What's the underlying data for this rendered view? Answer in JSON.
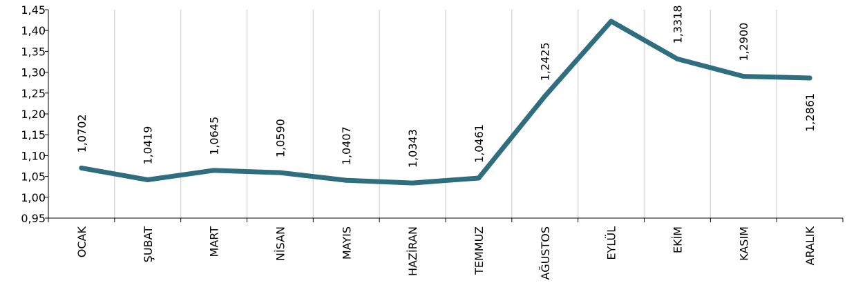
{
  "chart_data": {
    "type": "line",
    "categories": [
      "OCAK",
      "ŞUBAT",
      "MART",
      "NİSAN",
      "MAYIS",
      "HAZİRAN",
      "TEMMUZ",
      "AĞUSTOS",
      "EYLÜL",
      "EKİM",
      "KASIM",
      "ARALIK"
    ],
    "series": [
      {
        "values": [
          1.0702,
          1.0419,
          1.0645,
          1.059,
          1.0407,
          1.0343,
          1.0461,
          1.2425,
          1.4222,
          1.3318,
          1.29,
          1.2861
        ],
        "data_labels": [
          "1,0702",
          "1,0419",
          "1,0645",
          "1,0590",
          "1,0407",
          "1,0343",
          "1,0461",
          "1,2425",
          "",
          "1,3318",
          "1,2900",
          "1,2861"
        ]
      }
    ],
    "ylim": [
      0.95,
      1.45
    ],
    "yticks": [
      "0,95",
      "1,00",
      "1,05",
      "1,10",
      "1,15",
      "1,20",
      "1,25",
      "1,30",
      "1,35",
      "1,40",
      "1,45"
    ],
    "xlabel": "",
    "ylabel": "",
    "grid": "vertical",
    "legend": "none",
    "colors": {
      "line": "#2e6e7e",
      "grid": "#d9d9d9",
      "axis": "#000000"
    }
  }
}
